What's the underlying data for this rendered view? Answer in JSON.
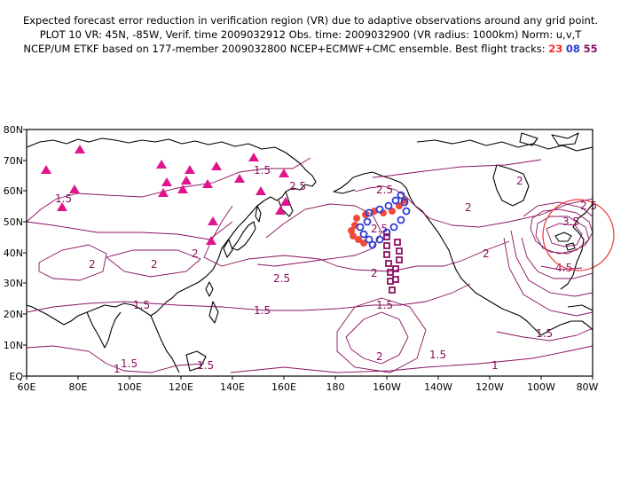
{
  "header": {
    "line1": "Expected forecast error reduction in verification region (VR) due to adaptive observations around any grid point.",
    "line2": "PLOT 10 VR: 45N, -85W, Verif. time 2009032912 Obs. time: 2009032900 (VR radius: 1000km) Norm: u,v,T",
    "line3_prefix": "NCEP/UM ETKF based on 177-member 2009032800 NCEP+ECMWF+CMC ensemble. Best flight tracks:",
    "track_23": "23",
    "track_08": "08",
    "track_55": "55"
  },
  "map": {
    "lat_labels": [
      "80N",
      "70N",
      "60N",
      "50N",
      "40N",
      "30N",
      "20N",
      "10N",
      "EQ"
    ],
    "lon_labels": [
      "60E",
      "80E",
      "100E",
      "120E",
      "140E",
      "160E",
      "180",
      "160W",
      "140W",
      "120W",
      "100W",
      "80W"
    ],
    "contour_labels": [
      "1.5",
      "1.5",
      "2",
      "2",
      "2.5",
      "2.5",
      "2.5",
      "2",
      "2",
      "1.5",
      "1.5",
      "1.5",
      "2",
      "1.5",
      "1",
      "1.5",
      "2.5",
      "3.5",
      "4.5",
      "2",
      "2.5",
      "1.5",
      "1",
      "2",
      "1.5",
      "2"
    ],
    "colors": {
      "contour": "#8a1060",
      "triangle": "#e0158c",
      "track_red": "#f04a3a",
      "track_blue": "#2a3ad6",
      "track_purple": "#8a1060",
      "vr_circle": "#f03a3a",
      "coast": "#000000"
    }
  }
}
